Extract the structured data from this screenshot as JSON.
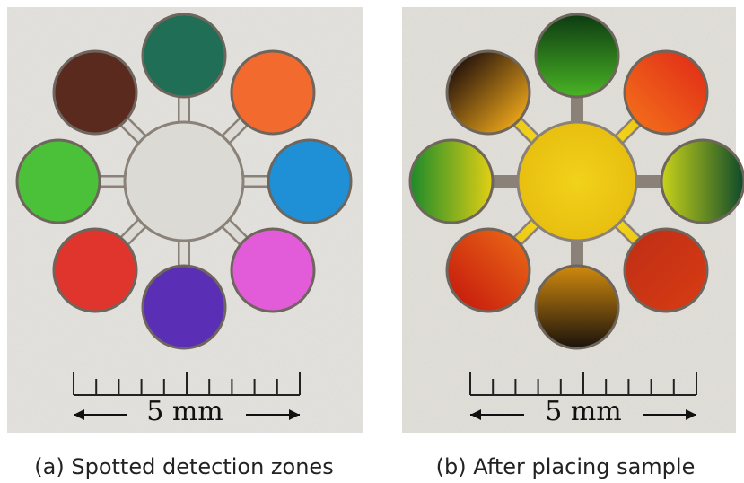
{
  "panels": [
    {
      "scale_label": "5 mm",
      "caption": "(a) Spotted detection zones"
    },
    {
      "scale_label": "5 mm",
      "caption": "(b) After placing sample"
    }
  ]
}
